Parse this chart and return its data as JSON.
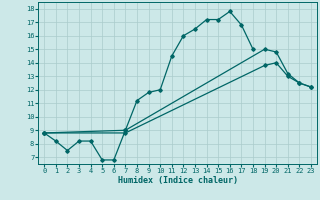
{
  "xlabel": "Humidex (Indice chaleur)",
  "background_color": "#cce8e8",
  "grid_color": "#aacccc",
  "line_color": "#006666",
  "xlim": [
    -0.5,
    23.5
  ],
  "ylim": [
    6.5,
    18.5
  ],
  "xticks": [
    0,
    1,
    2,
    3,
    4,
    5,
    6,
    7,
    8,
    9,
    10,
    11,
    12,
    13,
    14,
    15,
    16,
    17,
    18,
    19,
    20,
    21,
    22,
    23
  ],
  "yticks": [
    7,
    8,
    9,
    10,
    11,
    12,
    13,
    14,
    15,
    16,
    17,
    18
  ],
  "line1_x": [
    0,
    1,
    2,
    3,
    4,
    5,
    6,
    7,
    8,
    9,
    10,
    11,
    12,
    13,
    14,
    15,
    16,
    17,
    18
  ],
  "line1_y": [
    8.8,
    8.2,
    7.5,
    8.2,
    8.2,
    6.8,
    6.8,
    9.0,
    11.2,
    11.8,
    12.0,
    14.5,
    16.0,
    16.5,
    17.2,
    17.2,
    17.8,
    16.8,
    15.0
  ],
  "line2_x": [
    0,
    7,
    19,
    20,
    21,
    22,
    23
  ],
  "line2_y": [
    8.8,
    8.8,
    13.8,
    14.0,
    13.0,
    12.5,
    12.2
  ],
  "line3_x": [
    0,
    7,
    19,
    20,
    21,
    22,
    23
  ],
  "line3_y": [
    8.8,
    9.0,
    15.0,
    14.8,
    13.2,
    12.5,
    12.2
  ]
}
